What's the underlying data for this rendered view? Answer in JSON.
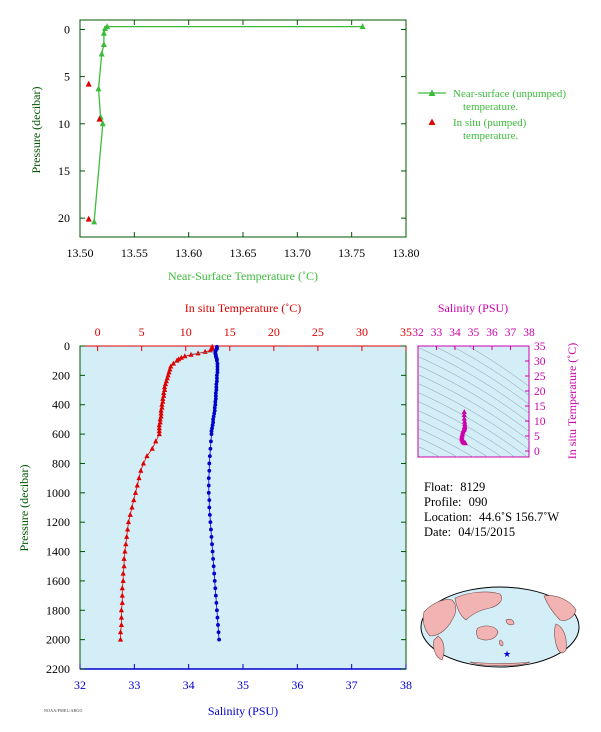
{
  "colors": {
    "near_surface": "#3dbb3d",
    "in_situ_temp": "#dd0000",
    "salinity": "#0000cc",
    "ts_diagram": "#cc00aa",
    "axis_dark": "#005500",
    "plot_bg": "#d4eef8"
  },
  "footer_text": "NOAA/PMEL/ARGO",
  "info": {
    "float_label": "Float:",
    "float_value": "8129",
    "profile_label": "Profile:",
    "profile_value": "090",
    "location_label": "Location:",
    "location_value": "44.6˚S  156.7˚W",
    "date_label": "Date:",
    "date_value": "04/15/2015"
  },
  "chart_data": [
    {
      "id": "near_surface",
      "type": "line",
      "xlabel": "Near-Surface Temperature (˚C)",
      "ylabel": "Pressure (decibar)",
      "xlim": [
        13.5,
        13.8
      ],
      "ylim": [
        22,
        -1
      ],
      "xticks": [
        "13.50",
        "13.55",
        "13.60",
        "13.65",
        "13.70",
        "13.75",
        "13.80"
      ],
      "yticks": [
        "0",
        "5",
        "10",
        "15",
        "20"
      ],
      "legend_position": "right",
      "legend": [
        "Near-surface (unpumped) temperature.",
        "In situ (pumped) temperature."
      ],
      "series": [
        {
          "name": "Near-surface (unpumped) temperature.",
          "marker": "triangle-line",
          "points": [
            [
              13.76,
              -0.3
            ],
            [
              13.525,
              -0.3
            ],
            [
              13.523,
              -0.1
            ],
            [
              13.522,
              0.4
            ],
            [
              13.522,
              1.6
            ],
            [
              13.52,
              2.6
            ],
            [
              13.517,
              6.3
            ],
            [
              13.519,
              9.3
            ],
            [
              13.521,
              10.0
            ],
            [
              13.513,
              20.4
            ]
          ]
        },
        {
          "name": "In situ (pumped) temperature.",
          "marker": "triangle",
          "points": [
            [
              13.508,
              5.8
            ],
            [
              13.518,
              9.5
            ],
            [
              13.508,
              20.1
            ]
          ]
        }
      ]
    },
    {
      "id": "profile",
      "type": "scatter",
      "xlabel_top": "In situ Temperature (˚C)",
      "xlabel_bottom": "Salinity (PSU)",
      "ylabel": "Pressure (decibar)",
      "xlim_top": [
        -2,
        35
      ],
      "xlim_bottom": [
        32,
        38
      ],
      "ylim": [
        2200,
        0
      ],
      "xticks_top": [
        "0",
        "5",
        "10",
        "15",
        "20",
        "25",
        "30",
        "35"
      ],
      "xticks_bottom": [
        "32",
        "33",
        "34",
        "35",
        "36",
        "37",
        "38"
      ],
      "yticks": [
        "0",
        "200",
        "400",
        "600",
        "800",
        "1000",
        "1200",
        "1400",
        "1600",
        "1800",
        "2000",
        "2200"
      ],
      "temperature": [
        [
          13.0,
          5
        ],
        [
          13.0,
          12
        ],
        [
          13.0,
          20
        ],
        [
          12.8,
          30
        ],
        [
          12.2,
          40
        ],
        [
          11.4,
          50
        ],
        [
          10.6,
          60
        ],
        [
          9.9,
          70
        ],
        [
          9.5,
          80
        ],
        [
          9.2,
          90
        ],
        [
          9.0,
          100
        ],
        [
          8.6,
          120
        ],
        [
          8.3,
          140
        ],
        [
          8.2,
          160
        ],
        [
          8.1,
          180
        ],
        [
          8.0,
          200
        ],
        [
          7.9,
          220
        ],
        [
          7.8,
          240
        ],
        [
          7.7,
          260
        ],
        [
          7.6,
          280
        ],
        [
          7.6,
          300
        ],
        [
          7.5,
          320
        ],
        [
          7.5,
          340
        ],
        [
          7.4,
          360
        ],
        [
          7.4,
          380
        ],
        [
          7.3,
          400
        ],
        [
          7.3,
          420
        ],
        [
          7.2,
          440
        ],
        [
          7.2,
          460
        ],
        [
          7.2,
          480
        ],
        [
          7.1,
          500
        ],
        [
          7.1,
          520
        ],
        [
          7.0,
          540
        ],
        [
          7.0,
          560
        ],
        [
          7.0,
          580
        ],
        [
          7.0,
          600
        ],
        [
          6.6,
          650
        ],
        [
          6.2,
          700
        ],
        [
          5.6,
          750
        ],
        [
          5.2,
          800
        ],
        [
          4.9,
          850
        ],
        [
          4.7,
          900
        ],
        [
          4.5,
          950
        ],
        [
          4.3,
          1000
        ],
        [
          4.1,
          1050
        ],
        [
          3.9,
          1100
        ],
        [
          3.7,
          1150
        ],
        [
          3.5,
          1200
        ],
        [
          3.4,
          1250
        ],
        [
          3.3,
          1300
        ],
        [
          3.2,
          1350
        ],
        [
          3.1,
          1400
        ],
        [
          3.0,
          1450
        ],
        [
          3.0,
          1500
        ],
        [
          2.9,
          1550
        ],
        [
          2.9,
          1600
        ],
        [
          2.8,
          1650
        ],
        [
          2.8,
          1700
        ],
        [
          2.8,
          1750
        ],
        [
          2.7,
          1800
        ],
        [
          2.7,
          1850
        ],
        [
          2.7,
          1900
        ],
        [
          2.6,
          1950
        ],
        [
          2.6,
          2000
        ]
      ],
      "salinity": [
        [
          34.52,
          5
        ],
        [
          34.52,
          12
        ],
        [
          34.52,
          20
        ],
        [
          34.5,
          30
        ],
        [
          34.49,
          40
        ],
        [
          34.49,
          50
        ],
        [
          34.5,
          60
        ],
        [
          34.5,
          70
        ],
        [
          34.51,
          80
        ],
        [
          34.52,
          90
        ],
        [
          34.52,
          100
        ],
        [
          34.53,
          120
        ],
        [
          34.53,
          140
        ],
        [
          34.53,
          160
        ],
        [
          34.53,
          180
        ],
        [
          34.52,
          200
        ],
        [
          34.52,
          220
        ],
        [
          34.52,
          240
        ],
        [
          34.51,
          260
        ],
        [
          34.51,
          280
        ],
        [
          34.51,
          300
        ],
        [
          34.5,
          320
        ],
        [
          34.5,
          340
        ],
        [
          34.5,
          360
        ],
        [
          34.49,
          380
        ],
        [
          34.49,
          400
        ],
        [
          34.48,
          420
        ],
        [
          34.48,
          440
        ],
        [
          34.47,
          460
        ],
        [
          34.46,
          480
        ],
        [
          34.45,
          500
        ],
        [
          34.45,
          520
        ],
        [
          34.44,
          540
        ],
        [
          34.43,
          560
        ],
        [
          34.42,
          580
        ],
        [
          34.42,
          600
        ],
        [
          34.41,
          650
        ],
        [
          34.4,
          700
        ],
        [
          34.39,
          750
        ],
        [
          34.38,
          800
        ],
        [
          34.38,
          850
        ],
        [
          34.37,
          900
        ],
        [
          34.37,
          950
        ],
        [
          34.37,
          1000
        ],
        [
          34.38,
          1050
        ],
        [
          34.38,
          1100
        ],
        [
          34.39,
          1150
        ],
        [
          34.4,
          1200
        ],
        [
          34.41,
          1250
        ],
        [
          34.42,
          1300
        ],
        [
          34.43,
          1350
        ],
        [
          34.44,
          1400
        ],
        [
          34.45,
          1450
        ],
        [
          34.46,
          1500
        ],
        [
          34.47,
          1550
        ],
        [
          34.48,
          1600
        ],
        [
          34.49,
          1650
        ],
        [
          34.5,
          1700
        ],
        [
          34.51,
          1750
        ],
        [
          34.52,
          1800
        ],
        [
          34.53,
          1850
        ],
        [
          34.54,
          1900
        ],
        [
          34.55,
          1950
        ],
        [
          34.56,
          2000
        ]
      ]
    },
    {
      "id": "ts_diagram",
      "type": "scatter",
      "xlabel": "Salinity (PSU)",
      "ylabel": "In situ Temperature (˚C)",
      "xlim": [
        32,
        38
      ],
      "ylim": [
        -2,
        35
      ],
      "xticks": [
        "32",
        "33",
        "34",
        "35",
        "36",
        "37",
        "38"
      ],
      "yticks": [
        "0",
        "5",
        "10",
        "15",
        "20",
        "25",
        "30",
        "35"
      ],
      "density_contours": true,
      "points": [
        [
          34.5,
          13.0
        ],
        [
          34.5,
          12.0
        ],
        [
          34.5,
          10.8
        ],
        [
          34.52,
          9.8
        ],
        [
          34.53,
          9.0
        ],
        [
          34.53,
          8.3
        ],
        [
          34.52,
          8.0
        ],
        [
          34.51,
          7.7
        ],
        [
          34.5,
          7.4
        ],
        [
          34.49,
          7.2
        ],
        [
          34.47,
          7.0
        ],
        [
          34.44,
          6.6
        ],
        [
          34.42,
          6.2
        ],
        [
          34.4,
          5.6
        ],
        [
          34.38,
          5.2
        ],
        [
          34.37,
          4.7
        ],
        [
          34.37,
          4.3
        ],
        [
          34.38,
          3.9
        ],
        [
          34.4,
          3.5
        ],
        [
          34.43,
          3.2
        ],
        [
          34.46,
          3.0
        ],
        [
          34.49,
          2.8
        ],
        [
          34.52,
          2.7
        ],
        [
          34.56,
          2.6
        ]
      ]
    }
  ]
}
